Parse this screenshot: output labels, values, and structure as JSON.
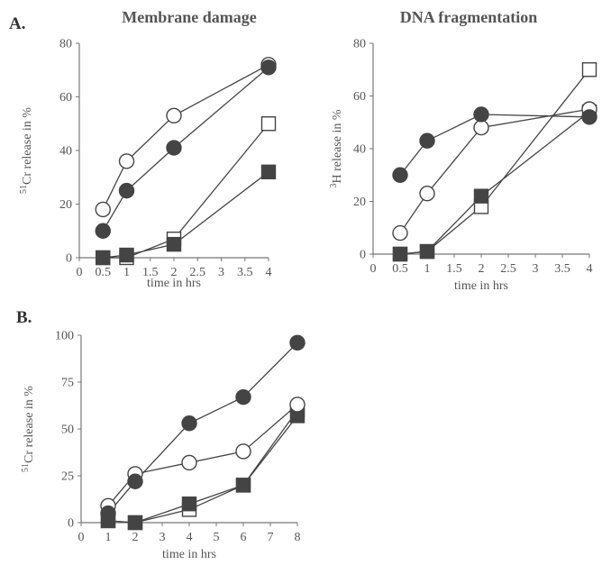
{
  "panels": [
    {
      "letter": "A."
    },
    {
      "letter": "B."
    }
  ],
  "chart_data": [
    {
      "type": "line",
      "title": "Membrane damage",
      "ylabel_sup": "51",
      "ylabel": "Cr release in %",
      "xlabel": "time in hrs",
      "xlim": [
        0,
        4
      ],
      "ylim": [
        0,
        80
      ],
      "xticks": [
        "0",
        "0.5",
        "1",
        "1.5",
        "2",
        "2.5",
        "3",
        "3.5",
        "4"
      ],
      "yticks": [
        "0",
        "20",
        "40",
        "60",
        "80"
      ],
      "series": [
        {
          "marker": "circle-filled",
          "x": [
            0.5,
            1,
            2,
            4
          ],
          "y": [
            10,
            25,
            41,
            71
          ]
        },
        {
          "marker": "circle-open",
          "x": [
            0.5,
            1,
            2,
            4
          ],
          "y": [
            18,
            36,
            53,
            72
          ]
        },
        {
          "marker": "square-filled",
          "x": [
            0.5,
            1,
            2,
            4
          ],
          "y": [
            0,
            1,
            5,
            32
          ]
        },
        {
          "marker": "square-open",
          "x": [
            0.5,
            1,
            2,
            4
          ],
          "y": [
            0,
            0,
            7,
            50
          ]
        }
      ]
    },
    {
      "type": "line",
      "title": "DNA fragmentation",
      "ylabel_sup": "3",
      "ylabel": "H release in %",
      "xlabel": "time in hrs",
      "xlim": [
        0,
        4
      ],
      "ylim": [
        0,
        80
      ],
      "xticks": [
        "0",
        "0.5",
        "1",
        "1.5",
        "2",
        "2.5",
        "3",
        "3.5",
        "4"
      ],
      "yticks": [
        "0",
        "20",
        "40",
        "60",
        "80"
      ],
      "series": [
        {
          "marker": "circle-filled",
          "x": [
            0.5,
            1,
            2,
            4
          ],
          "y": [
            30,
            43,
            53,
            52
          ]
        },
        {
          "marker": "circle-open",
          "x": [
            0.5,
            1,
            2,
            4
          ],
          "y": [
            8,
            23,
            48,
            55
          ]
        },
        {
          "marker": "square-filled",
          "x": [
            0.5,
            1,
            2,
            4
          ],
          "y": [
            0,
            1,
            22,
            54
          ]
        },
        {
          "marker": "square-open",
          "x": [
            0.5,
            1,
            2,
            4
          ],
          "y": [
            0,
            1,
            18,
            70
          ]
        }
      ]
    },
    {
      "type": "line",
      "title": "",
      "ylabel_sup": "51",
      "ylabel": "Cr release in %",
      "xlabel": "time in hrs",
      "xlim": [
        0,
        8
      ],
      "ylim": [
        0,
        100
      ],
      "xticks": [
        "0",
        "1",
        "2",
        "3",
        "4",
        "5",
        "6",
        "7",
        "8"
      ],
      "yticks": [
        "0",
        "25",
        "50",
        "75",
        "100"
      ],
      "series": [
        {
          "marker": "circle-filled",
          "x": [
            1,
            2,
            4,
            6,
            8
          ],
          "y": [
            5,
            22,
            53,
            67,
            96
          ]
        },
        {
          "marker": "circle-open",
          "x": [
            1,
            2,
            4,
            6,
            8
          ],
          "y": [
            9,
            26,
            32,
            38,
            63
          ]
        },
        {
          "marker": "square-filled",
          "x": [
            1,
            2,
            4,
            6,
            8
          ],
          "y": [
            1,
            0,
            10,
            20,
            57
          ]
        },
        {
          "marker": "square-open",
          "x": [
            1,
            2,
            4,
            6,
            8
          ],
          "y": [
            1,
            0,
            7,
            20,
            60
          ]
        }
      ]
    }
  ],
  "colors": {
    "ink": "#444444",
    "axis": "#777777"
  }
}
